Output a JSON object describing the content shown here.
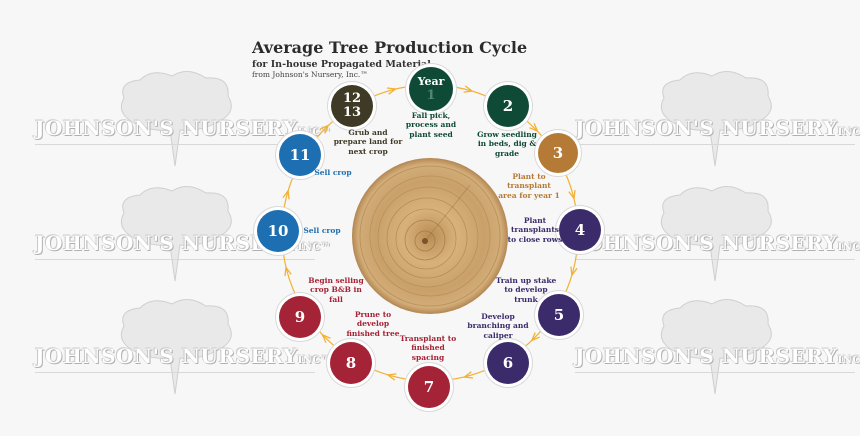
{
  "title": "Average Tree Production Cycle",
  "subtitle": "for In-house Propagated Material",
  "source_line": "from Johnson's Nursery, Inc.™",
  "watermark": {
    "brand_main": "JOHNSON'S NURSERY",
    "brand_suffix": "INC™"
  },
  "colors": {
    "arrow": "#f2b134",
    "year": "#0f4a37",
    "step2": "#0f4a37",
    "step3": "#b57a35",
    "purple": "#3b2b6b",
    "red": "#a52336",
    "blue": "#1d6fb2",
    "olive": "#3e3a26"
  },
  "center_image": "tree-trunk-cross-section",
  "nodes": [
    {
      "id": "year",
      "label": "Year",
      "number": "1",
      "color": "#0f4a37",
      "caption": [
        "Fall pick,",
        "process and",
        "plant seed"
      ],
      "caption_color": "#0f4a37"
    },
    {
      "id": "n2",
      "number": "2",
      "color": "#0f4a37",
      "caption": [
        "Grow seedling",
        "in beds, dig &",
        "grade"
      ],
      "caption_color": "#0f4a37"
    },
    {
      "id": "n3",
      "number": "3",
      "color": "#b57a35",
      "caption": [
        "Plant to",
        "transplant",
        "area for year 1"
      ],
      "caption_color": "#b57a35"
    },
    {
      "id": "n4",
      "number": "4",
      "color": "#3b2b6b",
      "caption": [
        "Plant",
        "transplants",
        "to close rows"
      ],
      "caption_color": "#3b2b6b"
    },
    {
      "id": "n5",
      "number": "5",
      "color": "#3b2b6b",
      "caption": [
        "Train up stake",
        "to develop",
        "trunk"
      ],
      "caption_color": "#3b2b6b"
    },
    {
      "id": "n6",
      "number": "6",
      "color": "#3b2b6b",
      "caption": [
        "Develop",
        "branching and",
        "caliper"
      ],
      "caption_color": "#3b2b6b"
    },
    {
      "id": "n7",
      "number": "7",
      "color": "#a52336",
      "caption": [
        "Transplant to",
        "finished",
        "spacing"
      ],
      "caption_color": "#a52336"
    },
    {
      "id": "n8",
      "number": "8",
      "color": "#a52336",
      "caption": [
        "Prune to",
        "develop",
        "finished tree"
      ],
      "caption_color": "#a52336"
    },
    {
      "id": "n9",
      "number": "9",
      "color": "#a52336",
      "caption": [
        "Begin selling",
        "crop B&B in",
        "fall"
      ],
      "caption_color": "#a52336"
    },
    {
      "id": "n10",
      "number": "10",
      "color": "#1d6fb2",
      "caption": [
        "Sell crop"
      ],
      "caption_color": "#1d6fb2"
    },
    {
      "id": "n11",
      "number": "11",
      "color": "#1d6fb2",
      "caption": [
        "Sell crop"
      ],
      "caption_color": "#1d6fb2"
    },
    {
      "id": "n12",
      "number": "12",
      "number2": "13",
      "color": "#3e3a26",
      "caption": [
        "Grub and",
        "prepare land for",
        "next crop"
      ],
      "caption_color": "#3e3a26"
    }
  ]
}
